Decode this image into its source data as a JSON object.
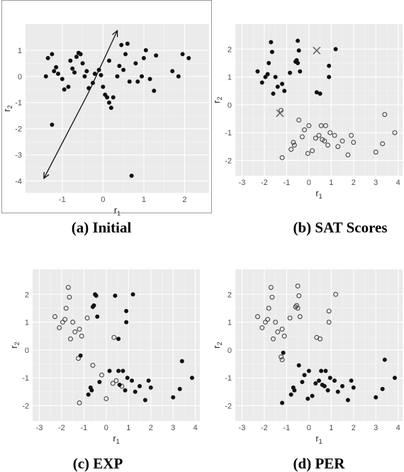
{
  "chart_data": [
    {
      "id": "a",
      "type": "scatter",
      "caption": "(a)   Initial",
      "xlabel": "r",
      "xlabel_sub": "1",
      "ylabel": "r",
      "ylabel_sub": "2",
      "xlim": [
        -1.9,
        2.6
      ],
      "ylim": [
        -4.45,
        2.0
      ],
      "xticks": [
        -1,
        0,
        1,
        2
      ],
      "yticks": [
        -4,
        -3,
        -2,
        -1,
        0,
        1
      ],
      "framed": true,
      "arrows": [
        {
          "from": [
            -0.35,
            -0.6
          ],
          "to": [
            0.35,
            1.75
          ]
        },
        {
          "from": [
            -0.35,
            -0.6
          ],
          "to": [
            -1.45,
            -3.9
          ]
        }
      ],
      "series": [
        {
          "style": "filled",
          "points": [
            [
              -1.4,
              0.0
            ],
            [
              -1.35,
              0.7
            ],
            [
              -1.25,
              0.85
            ],
            [
              -1.2,
              0.2
            ],
            [
              -1.15,
              0.35
            ],
            [
              -1.1,
              0.1
            ],
            [
              -1.0,
              -0.1
            ],
            [
              -0.95,
              -0.5
            ],
            [
              -0.85,
              -0.4
            ],
            [
              -0.8,
              0.6
            ],
            [
              -0.75,
              0.3
            ],
            [
              -0.7,
              0.15
            ],
            [
              -0.65,
              0.75
            ],
            [
              -0.6,
              0.9
            ],
            [
              -0.55,
              0.85
            ],
            [
              -0.5,
              0.5
            ],
            [
              -0.45,
              0.0
            ],
            [
              -0.4,
              0.2
            ],
            [
              -0.35,
              -0.45
            ],
            [
              -0.25,
              -0.25
            ],
            [
              -0.2,
              0.1
            ],
            [
              -0.1,
              0.25
            ],
            [
              -0.05,
              0.05
            ],
            [
              0.0,
              -0.4
            ],
            [
              0.05,
              -0.7
            ],
            [
              0.1,
              -0.8
            ],
            [
              0.15,
              -1.0
            ],
            [
              0.2,
              -1.2
            ],
            [
              0.25,
              -0.8
            ],
            [
              0.35,
              0.0
            ],
            [
              0.4,
              0.4
            ],
            [
              0.45,
              1.2
            ],
            [
              0.55,
              0.85
            ],
            [
              0.6,
              1.25
            ],
            [
              0.65,
              -0.2
            ],
            [
              0.8,
              0.5
            ],
            [
              0.85,
              -0.2
            ],
            [
              0.95,
              0.0
            ],
            [
              1.0,
              0.7
            ],
            [
              1.05,
              1.0
            ],
            [
              1.15,
              -0.1
            ],
            [
              1.25,
              -0.55
            ],
            [
              1.3,
              0.8
            ],
            [
              1.7,
              0.2
            ],
            [
              1.85,
              0.0
            ],
            [
              1.95,
              0.85
            ],
            [
              2.1,
              0.7
            ],
            [
              -1.25,
              -1.85
            ],
            [
              0.7,
              -3.8
            ],
            [
              0.15,
              0.6
            ],
            [
              0.5,
              0.25
            ]
          ]
        }
      ]
    },
    {
      "id": "b",
      "type": "scatter",
      "caption": "(b) SAT Scores",
      "xlabel": "r",
      "xlabel_sub": "1",
      "ylabel": "r",
      "ylabel_sub": "2",
      "xlim": [
        -3.3,
        4.2
      ],
      "ylim": [
        -2.55,
        2.9
      ],
      "xticks": [
        -3,
        -2,
        -1,
        0,
        1,
        2,
        3,
        4
      ],
      "yticks": [
        -2,
        -1,
        0,
        1,
        2
      ],
      "framed": false,
      "centers": [
        [
          0.35,
          1.95
        ],
        [
          -1.3,
          -0.3
        ]
      ],
      "series": [
        {
          "style": "filled",
          "points": [
            [
              -2.3,
              1.2
            ],
            [
              -2.1,
              0.8
            ],
            [
              -1.95,
              1.0
            ],
            [
              -1.85,
              1.1
            ],
            [
              -1.8,
              1.5
            ],
            [
              -1.7,
              2.25
            ],
            [
              -1.65,
              1.9
            ],
            [
              -1.6,
              0.4
            ],
            [
              -1.5,
              1.0
            ],
            [
              -1.4,
              0.65
            ],
            [
              -1.2,
              0.75
            ],
            [
              -1.1,
              0.5
            ],
            [
              -0.6,
              1.55
            ],
            [
              -0.55,
              1.6
            ],
            [
              -0.5,
              2.3
            ],
            [
              -0.45,
              1.95
            ],
            [
              -0.4,
              1.2
            ],
            [
              0.35,
              0.45
            ],
            [
              0.5,
              0.4
            ],
            [
              0.9,
              1.4
            ],
            [
              0.9,
              1.0
            ],
            [
              1.2,
              2.0
            ],
            [
              -0.85,
              1.15
            ],
            [
              -0.5,
              1.5
            ]
          ]
        },
        {
          "style": "open",
          "points": [
            [
              -1.25,
              -0.2
            ],
            [
              -1.2,
              -1.9
            ],
            [
              -0.8,
              -1.6
            ],
            [
              -0.7,
              -1.35
            ],
            [
              -0.65,
              -1.45
            ],
            [
              -0.45,
              -0.55
            ],
            [
              -0.3,
              -1.15
            ],
            [
              -0.2,
              -0.9
            ],
            [
              0.0,
              -0.75
            ],
            [
              0.15,
              -1.65
            ],
            [
              0.3,
              -1.2
            ],
            [
              0.45,
              -1.1
            ],
            [
              0.55,
              -0.75
            ],
            [
              0.7,
              -1.3
            ],
            [
              0.75,
              -0.75
            ],
            [
              0.85,
              -1.45
            ],
            [
              0.95,
              -1.0
            ],
            [
              1.15,
              -1.1
            ],
            [
              1.3,
              -1.5
            ],
            [
              1.5,
              -1.3
            ],
            [
              1.75,
              -1.8
            ],
            [
              1.9,
              -1.1
            ],
            [
              2.0,
              -1.35
            ],
            [
              3.0,
              -1.7
            ],
            [
              3.3,
              -1.4
            ],
            [
              3.4,
              -0.35
            ],
            [
              3.85,
              -1.0
            ],
            [
              0.6,
              -1.25
            ],
            [
              -0.05,
              -1.75
            ]
          ]
        }
      ]
    },
    {
      "id": "c",
      "type": "scatter",
      "caption": "(c) EXP",
      "xlabel": "r",
      "xlabel_sub": "1",
      "ylabel": "r",
      "ylabel_sub": "2",
      "xlim": [
        -3.3,
        4.2
      ],
      "ylim": [
        -2.55,
        2.9
      ],
      "xticks": [
        -3,
        -2,
        -1,
        0,
        1,
        2,
        3,
        4
      ],
      "yticks": [
        -2,
        -1,
        0,
        1,
        2
      ],
      "framed": false,
      "series": [
        {
          "style": "open",
          "points": [
            [
              -2.3,
              1.2
            ],
            [
              -2.1,
              0.8
            ],
            [
              -1.95,
              1.0
            ],
            [
              -1.85,
              1.1
            ],
            [
              -1.8,
              1.5
            ],
            [
              -1.7,
              2.25
            ],
            [
              -1.65,
              1.9
            ],
            [
              -1.6,
              0.4
            ],
            [
              -1.5,
              1.0
            ],
            [
              -1.4,
              0.65
            ],
            [
              -1.2,
              0.75
            ],
            [
              -1.1,
              0.5
            ],
            [
              -1.25,
              -0.3
            ],
            [
              -1.2,
              -1.9
            ],
            [
              -0.6,
              -0.55
            ],
            [
              -0.2,
              -0.9
            ],
            [
              0.0,
              -1.75
            ],
            [
              0.3,
              -1.2
            ],
            [
              0.45,
              -1.1
            ],
            [
              0.35,
              0.45
            ],
            [
              0.7,
              -1.3
            ],
            [
              -0.85,
              1.15
            ]
          ]
        },
        {
          "style": "filled",
          "points": [
            [
              -0.6,
              1.55
            ],
            [
              -0.55,
              1.6
            ],
            [
              -0.5,
              2.0
            ],
            [
              -0.45,
              1.95
            ],
            [
              -0.4,
              1.2
            ],
            [
              0.4,
              1.95
            ],
            [
              0.55,
              0.4
            ],
            [
              0.9,
              1.4
            ],
            [
              0.9,
              1.0
            ],
            [
              1.2,
              2.0
            ],
            [
              -1.15,
              -0.2
            ],
            [
              -0.8,
              -1.6
            ],
            [
              -0.7,
              -1.35
            ],
            [
              -0.65,
              -1.45
            ],
            [
              -0.3,
              -1.15
            ],
            [
              0.15,
              -0.75
            ],
            [
              0.55,
              -0.75
            ],
            [
              0.75,
              -0.75
            ],
            [
              0.85,
              -1.45
            ],
            [
              0.95,
              -1.0
            ],
            [
              1.15,
              -1.1
            ],
            [
              1.3,
              -1.5
            ],
            [
              1.5,
              -1.3
            ],
            [
              1.75,
              -1.8
            ],
            [
              1.9,
              -1.1
            ],
            [
              2.0,
              -1.35
            ],
            [
              3.0,
              -1.7
            ],
            [
              3.3,
              -1.4
            ],
            [
              3.4,
              -0.4
            ],
            [
              3.85,
              -1.0
            ],
            [
              0.6,
              -1.25
            ]
          ]
        }
      ]
    },
    {
      "id": "d",
      "type": "scatter",
      "caption": "(d) PER",
      "xlabel": "r",
      "xlabel_sub": "1",
      "ylabel": "r",
      "ylabel_sub": "2",
      "xlim": [
        -3.3,
        4.2
      ],
      "ylim": [
        -2.55,
        2.9
      ],
      "xticks": [
        -3,
        -2,
        -1,
        0,
        1,
        2,
        3,
        4
      ],
      "yticks": [
        -2,
        -1,
        0,
        1,
        2
      ],
      "framed": false,
      "series": [
        {
          "style": "open",
          "points": [
            [
              -2.3,
              1.2
            ],
            [
              -2.1,
              0.8
            ],
            [
              -1.95,
              1.0
            ],
            [
              -1.85,
              1.1
            ],
            [
              -1.8,
              1.5
            ],
            [
              -1.7,
              2.25
            ],
            [
              -1.65,
              1.9
            ],
            [
              -1.6,
              0.4
            ],
            [
              -1.5,
              1.0
            ],
            [
              -1.4,
              0.65
            ],
            [
              -1.2,
              0.75
            ],
            [
              -1.1,
              0.5
            ],
            [
              -1.25,
              -0.25
            ],
            [
              -1.2,
              -0.35
            ],
            [
              -0.6,
              1.55
            ],
            [
              -0.55,
              1.6
            ],
            [
              -0.5,
              2.3
            ],
            [
              -0.45,
              1.95
            ],
            [
              -0.4,
              1.2
            ],
            [
              0.35,
              0.45
            ],
            [
              0.5,
              0.4
            ],
            [
              0.9,
              1.4
            ],
            [
              0.9,
              1.0
            ],
            [
              1.2,
              2.0
            ],
            [
              -0.85,
              1.15
            ],
            [
              -0.5,
              1.5
            ]
          ]
        },
        {
          "style": "filled",
          "points": [
            [
              -1.2,
              -1.9
            ],
            [
              -0.8,
              -1.6
            ],
            [
              -0.7,
              -1.35
            ],
            [
              -0.65,
              -1.45
            ],
            [
              -0.45,
              -0.55
            ],
            [
              -0.3,
              -1.15
            ],
            [
              -0.2,
              -0.9
            ],
            [
              0.0,
              -0.75
            ],
            [
              0.15,
              -1.65
            ],
            [
              0.3,
              -1.2
            ],
            [
              0.45,
              -1.1
            ],
            [
              0.55,
              -0.75
            ],
            [
              0.7,
              -1.3
            ],
            [
              0.75,
              -0.75
            ],
            [
              0.85,
              -1.45
            ],
            [
              0.95,
              -1.0
            ],
            [
              1.15,
              -1.1
            ],
            [
              1.3,
              -1.5
            ],
            [
              1.5,
              -1.3
            ],
            [
              1.75,
              -1.8
            ],
            [
              1.9,
              -1.1
            ],
            [
              2.0,
              -1.35
            ],
            [
              3.0,
              -1.7
            ],
            [
              3.3,
              -1.4
            ],
            [
              3.4,
              -0.35
            ],
            [
              3.85,
              -1.0
            ],
            [
              0.6,
              -1.25
            ],
            [
              -0.05,
              -1.75
            ],
            [
              -1.15,
              -0.1
            ]
          ]
        }
      ]
    }
  ]
}
